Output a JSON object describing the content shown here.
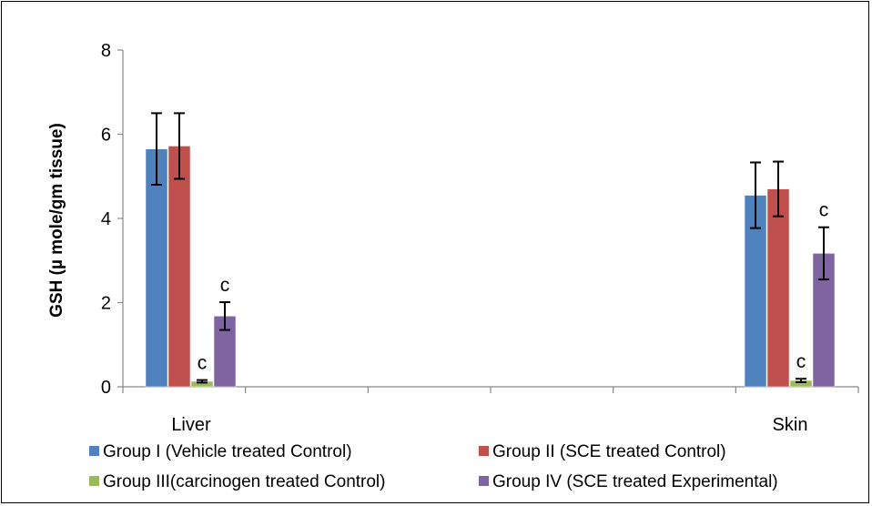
{
  "chart_data": {
    "type": "bar",
    "categories": [
      "Liver",
      "Skin"
    ],
    "title": "",
    "xlabel": "",
    "ylabel": "GSH (µ mole/gm tissue)",
    "ylim": [
      0,
      8
    ],
    "yticks": [
      0,
      2,
      4,
      6,
      8
    ],
    "grid": false,
    "legend_position": "bottom",
    "series": [
      {
        "name": "Group I (Vehicle treated Control)",
        "color": "#4F81BD",
        "values": [
          5.65,
          4.55
        ],
        "errors": [
          0.85,
          0.78
        ],
        "annotations": [
          "",
          ""
        ]
      },
      {
        "name": "Group II (SCE treated Control)",
        "color": "#C0504D",
        "values": [
          5.72,
          4.7
        ],
        "errors": [
          0.78,
          0.65
        ],
        "annotations": [
          "",
          ""
        ]
      },
      {
        "name": "Group III(carcinogen treated Control)",
        "color": "#9BBB59",
        "values": [
          0.13,
          0.15
        ],
        "errors": [
          0.03,
          0.04
        ],
        "annotations": [
          "c",
          "c"
        ]
      },
      {
        "name": "Group IV (SCE treated Experimental)",
        "color": "#8064A2",
        "values": [
          1.68,
          3.17
        ],
        "errors": [
          0.33,
          0.62
        ],
        "annotations": [
          "c",
          "c"
        ]
      }
    ]
  }
}
